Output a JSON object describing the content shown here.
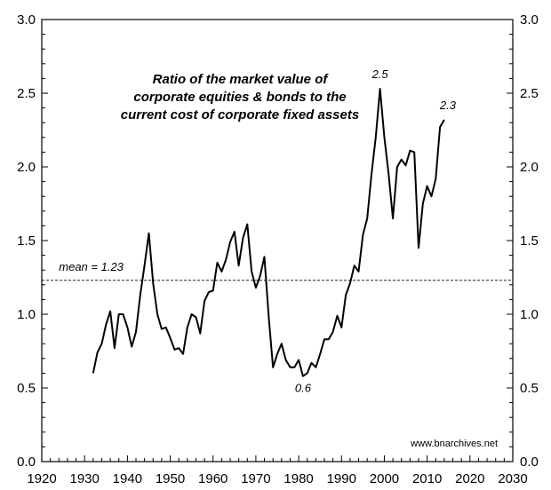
{
  "chart_data": {
    "type": "line",
    "title_lines": [
      "Ratio of the market value of",
      "corporate equities & bonds to the",
      "current cost of corporate fixed assets"
    ],
    "xlabel": "",
    "ylabel": "",
    "xlim": [
      1920,
      2030
    ],
    "ylim": [
      0.0,
      3.0
    ],
    "x_ticks": [
      1920,
      1930,
      1940,
      1950,
      1960,
      1970,
      1980,
      1990,
      2000,
      2010,
      2020,
      2030
    ],
    "y_ticks": [
      0.0,
      0.5,
      1.0,
      1.5,
      2.0,
      2.5,
      3.0
    ],
    "y_tick_labels": [
      "0.0",
      "0.5",
      "1.0",
      "1.5",
      "2.0",
      "2.5",
      "3.0"
    ],
    "grid": false,
    "series": [
      {
        "x": [
          1932,
          1933,
          1934,
          1935,
          1936,
          1937,
          1938,
          1939,
          1940,
          1941,
          1942,
          1943,
          1944,
          1945,
          1946,
          1947,
          1948,
          1949,
          1950,
          1951,
          1952,
          1953,
          1954,
          1955,
          1956,
          1957,
          1958,
          1959,
          1960,
          1961,
          1962,
          1963,
          1964,
          1965,
          1966,
          1967,
          1968,
          1969,
          1970,
          1971,
          1972,
          1973,
          1974,
          1975,
          1976,
          1977,
          1978,
          1979,
          1980,
          1981,
          1982,
          1983,
          1984,
          1985,
          1986,
          1987,
          1988,
          1989,
          1990,
          1991,
          1992,
          1993,
          1994,
          1995,
          1996,
          1997,
          1998,
          1999,
          2000,
          2001,
          2002,
          2003,
          2004,
          2005,
          2006,
          2007,
          2008,
          2009,
          2010,
          2011,
          2012,
          2013,
          2014
        ],
        "values": [
          0.6,
          0.74,
          0.8,
          0.93,
          1.02,
          0.77,
          1.0,
          1.0,
          0.91,
          0.78,
          0.88,
          1.13,
          1.33,
          1.55,
          1.21,
          1.0,
          0.9,
          0.91,
          0.84,
          0.76,
          0.77,
          0.73,
          0.91,
          1.0,
          0.98,
          0.87,
          1.09,
          1.15,
          1.16,
          1.35,
          1.29,
          1.37,
          1.49,
          1.56,
          1.33,
          1.52,
          1.61,
          1.29,
          1.18,
          1.26,
          1.39,
          0.98,
          0.64,
          0.73,
          0.8,
          0.69,
          0.64,
          0.64,
          0.69,
          0.58,
          0.6,
          0.67,
          0.64,
          0.73,
          0.83,
          0.83,
          0.88,
          0.99,
          0.91,
          1.13,
          1.21,
          1.33,
          1.29,
          1.54,
          1.65,
          1.95,
          2.2,
          2.53,
          2.2,
          1.95,
          1.65,
          2.0,
          2.05,
          2.01,
          2.11,
          2.1,
          1.45,
          1.75,
          1.87,
          1.8,
          1.92,
          2.27,
          2.32
        ],
        "color": "#000000"
      }
    ],
    "mean_line": {
      "value": 1.23,
      "label": "mean = 1.23"
    },
    "annotations": [
      {
        "text": "2.5",
        "x": 1999,
        "y": 2.53
      },
      {
        "text": "2.3",
        "x": 2014,
        "y": 2.32
      },
      {
        "text": "0.6",
        "x": 1981,
        "y": 0.58
      }
    ],
    "source_text": "www.bnarchives.net"
  }
}
